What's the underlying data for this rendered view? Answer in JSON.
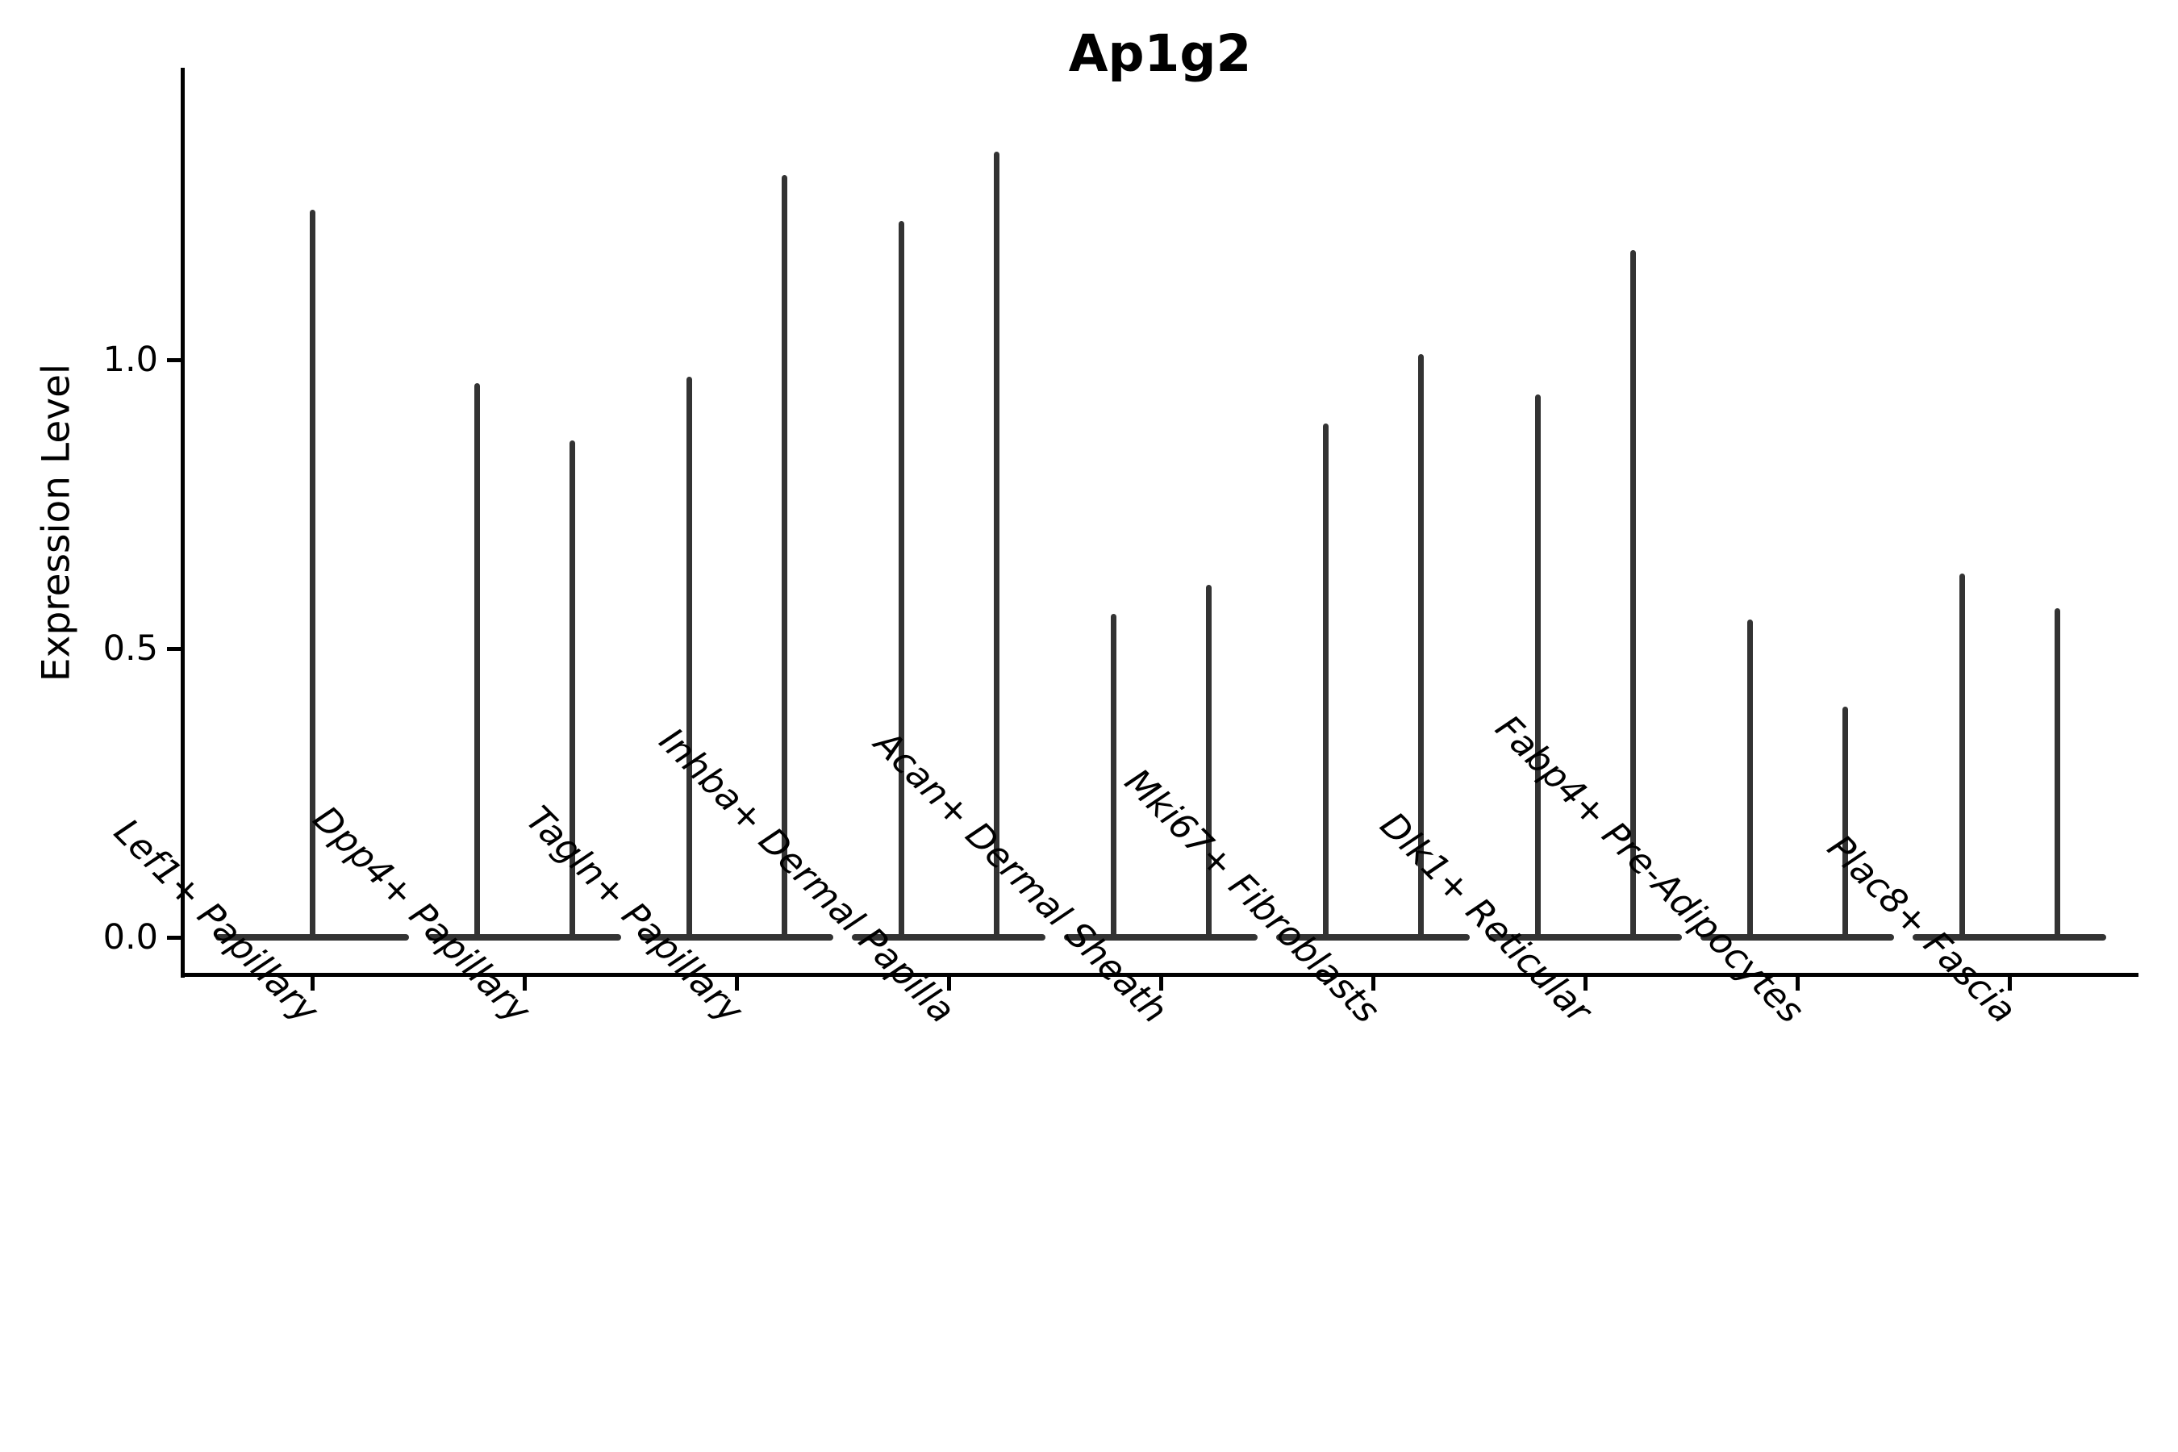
{
  "title": "Ap1g2",
  "axes": {
    "y_label": "Expression Level",
    "y_tick_labels": [
      "0.0",
      "0.5",
      "1.0"
    ]
  },
  "chart_data": {
    "type": "violin",
    "title": "Ap1g2",
    "xlabel": "",
    "ylabel": "Expression Level",
    "ylim": [
      -0.06,
      1.5
    ],
    "yticks": [
      0.0,
      0.5,
      1.0
    ],
    "grid": false,
    "legend_position": "none",
    "shape_note": "each violin collapses to a flat base at expression 0 with a thin vertical spike reaching the max expression value; categories with two values show two side-by-side spikes",
    "categories": [
      "Lef1+ Papillary",
      "Dpp4+ Papillary",
      "Tagln+ Papillary",
      "Inhba+ Dermal Papilla",
      "Acan+ Dermal Sheath",
      "Mki67+ Fibroblasts",
      "Dlk1+ Reticular",
      "Fabp4+ Pre-Adipocytes",
      "Plac8+ Fascia"
    ],
    "violins": [
      {
        "category": "Lef1+ Papillary",
        "max_values": [
          1.26
        ]
      },
      {
        "category": "Dpp4+ Papillary",
        "max_values": [
          0.96,
          0.86
        ]
      },
      {
        "category": "Tagln+ Papillary",
        "max_values": [
          0.97,
          1.32
        ]
      },
      {
        "category": "Inhba+ Dermal Papilla",
        "max_values": [
          1.24,
          1.36
        ]
      },
      {
        "category": "Acan+ Dermal Sheath",
        "max_values": [
          0.56,
          0.61
        ]
      },
      {
        "category": "Mki67+ Fibroblasts",
        "max_values": [
          0.89,
          1.01
        ]
      },
      {
        "category": "Dlk1+ Reticular",
        "max_values": [
          0.94,
          1.19
        ]
      },
      {
        "category": "Fabp4+ Pre-Adipocytes",
        "max_values": [
          0.55,
          0.4
        ]
      },
      {
        "category": "Plac8+ Fascia",
        "max_values": [
          0.63,
          0.57
        ]
      }
    ],
    "violin_color": "#333333",
    "axis_color": "#000000",
    "background_color": "#ffffff"
  }
}
